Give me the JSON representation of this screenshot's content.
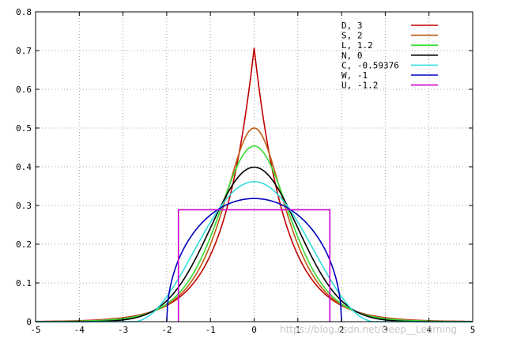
{
  "chart_data": {
    "type": "line",
    "xlim": [
      -5,
      5
    ],
    "ylim": [
      0,
      0.8
    ],
    "x_ticks": [
      -5,
      -4,
      -3,
      -2,
      -1,
      0,
      1,
      2,
      3,
      4,
      5
    ],
    "y_ticks": [
      0,
      0.1,
      0.2,
      0.3,
      0.4,
      0.5,
      0.6,
      0.7,
      0.8
    ],
    "x_tick_labels": [
      "-5",
      "-4",
      "-3",
      "-2",
      "-1",
      "0",
      "1",
      "2",
      "3",
      "4",
      "5"
    ],
    "y_tick_labels": [
      "0",
      "0.1",
      "0.2",
      "0.3",
      "0.4",
      "0.5",
      "0.6",
      "0.7",
      "0.8"
    ],
    "grid": true,
    "legend_position": "top-right",
    "series": [
      {
        "name": "D,  3",
        "color": "#c00000",
        "peak": 0.707
      },
      {
        "name": "S,  2",
        "color": "#c05a10",
        "peak": 0.5
      },
      {
        "name": "L,  1.2",
        "color": "#33dd33",
        "peak": 0.453
      },
      {
        "name": "N,  0",
        "color": "#000000",
        "peak": 0.399
      },
      {
        "name": "C, -0.59376",
        "color": "#33dddd",
        "peak": 0.36
      },
      {
        "name": "W, -1",
        "color": "#0000c0",
        "peak": 0.318
      },
      {
        "name": "U, -1.2",
        "color": "#cc00cc",
        "peak": 0.289
      }
    ]
  },
  "watermark": "https://blog.csdn.net/Deep__Learning"
}
